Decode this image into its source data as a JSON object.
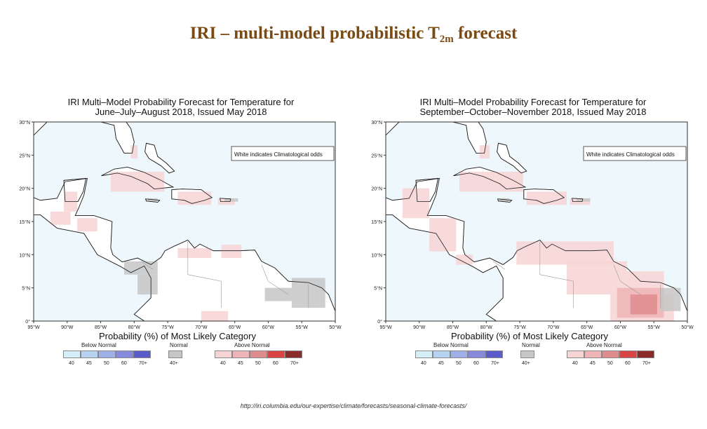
{
  "slide": {
    "title_main": "IRI – multi-model probabilistic T",
    "title_sub": "2m",
    "title_tail": " forecast",
    "url": "http://iri.columbia.edu/our-expertise/climate/forecasts/seasonal-climate-forecasts/"
  },
  "chart_data": [
    {
      "type": "heatmap",
      "title": "IRI Multi–Model Probability Forecast for Temperature for",
      "subtitle": "June–July–August 2018, Issued May 2018",
      "annotation": "White indicates Climatological odds",
      "xlabel": "Probability (%) of Most Likely Category",
      "xticks": [
        "95°W",
        "90°W",
        "85°W",
        "80°W",
        "75°W",
        "70°W",
        "65°W",
        "60°W",
        "55°W",
        "50°W"
      ],
      "yticks": [
        "0°",
        "5°N",
        "10°N",
        "15°N",
        "20°N",
        "25°N",
        "30°N"
      ],
      "xlim": [
        -95,
        -50
      ],
      "ylim": [
        0,
        30
      ],
      "regions": [
        {
          "category": "above",
          "level": 40,
          "lon": [
            -80.5,
            -79.5
          ],
          "lat": [
            24.5,
            26.5
          ]
        },
        {
          "category": "above",
          "level": 40,
          "lon": [
            -83.5,
            -75.5
          ],
          "lat": [
            19.5,
            22.5
          ]
        },
        {
          "category": "above",
          "level": 40,
          "lon": [
            -73.5,
            -68.5
          ],
          "lat": [
            17.5,
            19.5
          ]
        },
        {
          "category": "above",
          "level": 40,
          "lon": [
            -67.5,
            -65.0
          ],
          "lat": [
            17.5,
            18.5
          ]
        },
        {
          "category": "above",
          "level": 40,
          "lon": [
            -90.5,
            -88.5
          ],
          "lat": [
            16.5,
            19.5
          ]
        },
        {
          "category": "above",
          "level": 40,
          "lon": [
            -92.5,
            -89.5
          ],
          "lat": [
            14.5,
            16.5
          ]
        },
        {
          "category": "above",
          "level": 40,
          "lon": [
            -88.5,
            -85.5
          ],
          "lat": [
            13.5,
            15.5
          ]
        },
        {
          "category": "above",
          "level": 40,
          "lon": [
            -73.5,
            -68.5
          ],
          "lat": [
            9.5,
            11.0
          ]
        },
        {
          "category": "above",
          "level": 40,
          "lon": [
            -67.0,
            -64.0
          ],
          "lat": [
            9.5,
            11.5
          ]
        },
        {
          "category": "above",
          "level": 40,
          "lon": [
            -70.0,
            -66.0
          ],
          "lat": [
            0.0,
            1.5
          ]
        },
        {
          "category": "normal",
          "level": 40,
          "lon": [
            -81.5,
            -76.5
          ],
          "lat": [
            7.0,
            9.0
          ]
        },
        {
          "category": "normal",
          "level": 40,
          "lon": [
            -79.5,
            -76.5
          ],
          "lat": [
            4.0,
            7.0
          ]
        },
        {
          "category": "normal",
          "level": 40,
          "lon": [
            -56.5,
            -51.5
          ],
          "lat": [
            2.0,
            6.5
          ]
        },
        {
          "category": "normal",
          "level": 40,
          "lon": [
            -60.5,
            -56.5
          ],
          "lat": [
            3.0,
            5.0
          ]
        },
        {
          "category": "normal",
          "level": 40,
          "lon": [
            -78.0,
            -76.5
          ],
          "lat": [
            18.0,
            18.5
          ]
        },
        {
          "category": "normal",
          "level": 40,
          "lon": [
            -66.5,
            -64.5
          ],
          "lat": [
            18.0,
            18.5
          ]
        }
      ]
    },
    {
      "type": "heatmap",
      "title": "IRI Multi–Model Probability Forecast for Temperature for",
      "subtitle": "September–October–November 2018, Issued May 2018",
      "annotation": "White indicates Climatological odds",
      "xlabel": "Probability (%) of Most Likely Category",
      "xticks": [
        "95°W",
        "90°W",
        "85°W",
        "80°W",
        "75°W",
        "70°W",
        "65°W",
        "60°W",
        "55°W",
        "50°W"
      ],
      "yticks": [
        "0°",
        "5°N",
        "10°N",
        "15°N",
        "20°N",
        "25°N",
        "30°N"
      ],
      "xlim": [
        -95,
        -50
      ],
      "ylim": [
        0,
        30
      ],
      "regions": [
        {
          "category": "above",
          "level": 40,
          "lon": [
            -81.0,
            -79.5
          ],
          "lat": [
            24.5,
            26.5
          ]
        },
        {
          "category": "above",
          "level": 40,
          "lon": [
            -84.0,
            -74.5
          ],
          "lat": [
            19.5,
            22.5
          ]
        },
        {
          "category": "above",
          "level": 40,
          "lon": [
            -74.0,
            -68.0
          ],
          "lat": [
            17.5,
            19.5
          ]
        },
        {
          "category": "above",
          "level": 40,
          "lon": [
            -67.5,
            -64.5
          ],
          "lat": [
            17.5,
            18.5
          ]
        },
        {
          "category": "above",
          "level": 40,
          "lon": [
            -92.5,
            -88.5
          ],
          "lat": [
            15.5,
            20.0
          ]
        },
        {
          "category": "above",
          "level": 40,
          "lon": [
            -88.5,
            -84.5
          ],
          "lat": [
            10.5,
            15.5
          ]
        },
        {
          "category": "above",
          "level": 40,
          "lon": [
            -84.5,
            -82.0
          ],
          "lat": [
            8.5,
            10.0
          ]
        },
        {
          "category": "above",
          "level": 40,
          "lon": [
            -75.5,
            -61.0
          ],
          "lat": [
            8.5,
            12.0
          ]
        },
        {
          "category": "above",
          "level": 40,
          "lon": [
            -68.0,
            -59.0
          ],
          "lat": [
            4.0,
            9.0
          ]
        },
        {
          "category": "above",
          "level": 40,
          "lon": [
            -59.0,
            -53.5
          ],
          "lat": [
            4.0,
            7.5
          ]
        },
        {
          "category": "above",
          "level": 40,
          "lon": [
            -61.5,
            -52.0
          ],
          "lat": [
            0.0,
            4.0
          ]
        },
        {
          "category": "above",
          "level": 45,
          "lon": [
            -60.5,
            -53.5
          ],
          "lat": [
            0.5,
            5.0
          ]
        },
        {
          "category": "above",
          "level": 50,
          "lon": [
            -58.5,
            -54.5
          ],
          "lat": [
            1.0,
            4.0
          ]
        },
        {
          "category": "normal",
          "level": 40,
          "lon": [
            -54.0,
            -51.0
          ],
          "lat": [
            1.5,
            5.0
          ]
        },
        {
          "category": "normal",
          "level": 40,
          "lon": [
            -78.0,
            -76.5
          ],
          "lat": [
            18.0,
            18.5
          ]
        },
        {
          "category": "normal",
          "level": 40,
          "lon": [
            -66.5,
            -64.5
          ],
          "lat": [
            18.0,
            18.5
          ]
        }
      ]
    }
  ],
  "legend": {
    "below_title": "Below Normal",
    "normal_title": "Normal",
    "above_title": "Above Normal",
    "below_ticks": [
      "40",
      "45",
      "50",
      "60",
      "70+"
    ],
    "normal_ticks": [
      "40+"
    ],
    "above_ticks": [
      "40",
      "45",
      "50",
      "60",
      "70+"
    ]
  },
  "colors": {
    "ocean": "#eef7fc",
    "land": "#ffffff",
    "coast": "#222222",
    "border": "#999999",
    "below": [
      "#d4eff8",
      "#b6d3f1",
      "#9fb0e9",
      "#8789dd",
      "#5b5cc9"
    ],
    "normal": "#c6c6c6",
    "above": [
      "#f7d4d4",
      "#eeb4b7",
      "#e08c8f",
      "#d94444",
      "#8c2a2a"
    ]
  }
}
